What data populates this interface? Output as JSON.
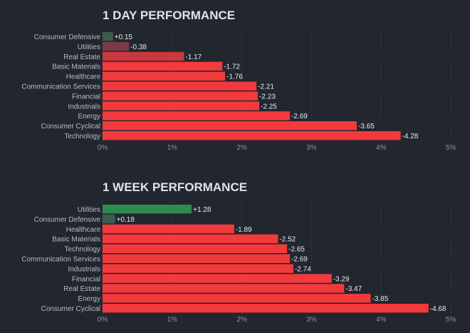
{
  "chart_data": [
    {
      "type": "bar",
      "orientation": "horizontal",
      "title": "1 DAY PERFORMANCE",
      "categories": [
        "Consumer Defensive",
        "Utilities",
        "Real Estate",
        "Basic Materials",
        "Healthcare",
        "Communication Services",
        "Financial",
        "Industrials",
        "Energy",
        "Consumer Cyclical",
        "Technology"
      ],
      "values": [
        0.15,
        -0.38,
        -1.17,
        -1.72,
        -1.76,
        -2.21,
        -2.23,
        -2.25,
        -2.69,
        -3.65,
        -4.28
      ],
      "value_labels": [
        "+0.15",
        "-0.38",
        "-1.17",
        "-1.72",
        "-1.76",
        "-2.21",
        "-2.23",
        "-2.25",
        "-2.69",
        "-3.65",
        "-4.28"
      ],
      "xlim": [
        0,
        5
      ],
      "x_ticks": [
        "0%",
        "1%",
        "2%",
        "3%",
        "4%",
        "5%"
      ],
      "xlabel": "",
      "ylabel": "",
      "grid": true,
      "colors": {
        "positive": "#2f8a4f",
        "positive_small": "#3b5c4e",
        "negative_small": "#7a3a48",
        "negative_mid": "#c9393f",
        "negative": "#f23a3d"
      }
    },
    {
      "type": "bar",
      "orientation": "horizontal",
      "title": "1 WEEK PERFORMANCE",
      "categories": [
        "Utilities",
        "Consumer Defensive",
        "Healthcare",
        "Basic Materials",
        "Technology",
        "Communication Services",
        "Industrials",
        "Financial",
        "Real Estate",
        "Energy",
        "Consumer Cyclical"
      ],
      "values": [
        1.28,
        0.18,
        -1.89,
        -2.52,
        -2.65,
        -2.69,
        -2.74,
        -3.29,
        -3.47,
        -3.85,
        -4.68
      ],
      "value_labels": [
        "+1.28",
        "+0.18",
        "-1.89",
        "-2.52",
        "-2.65",
        "-2.69",
        "-2.74",
        "-3.29",
        "-3.47",
        "-3.85",
        "-4.68"
      ],
      "xlim": [
        0,
        5
      ],
      "x_ticks": [
        "0%",
        "1%",
        "2%",
        "3%",
        "4%",
        "5%"
      ],
      "xlabel": "",
      "ylabel": "",
      "grid": true,
      "colors": {
        "positive": "#2f8a4f",
        "positive_small": "#3b5c4e",
        "negative_small": "#7a3a48",
        "negative_mid": "#c9393f",
        "negative": "#f23a3d"
      }
    }
  ]
}
